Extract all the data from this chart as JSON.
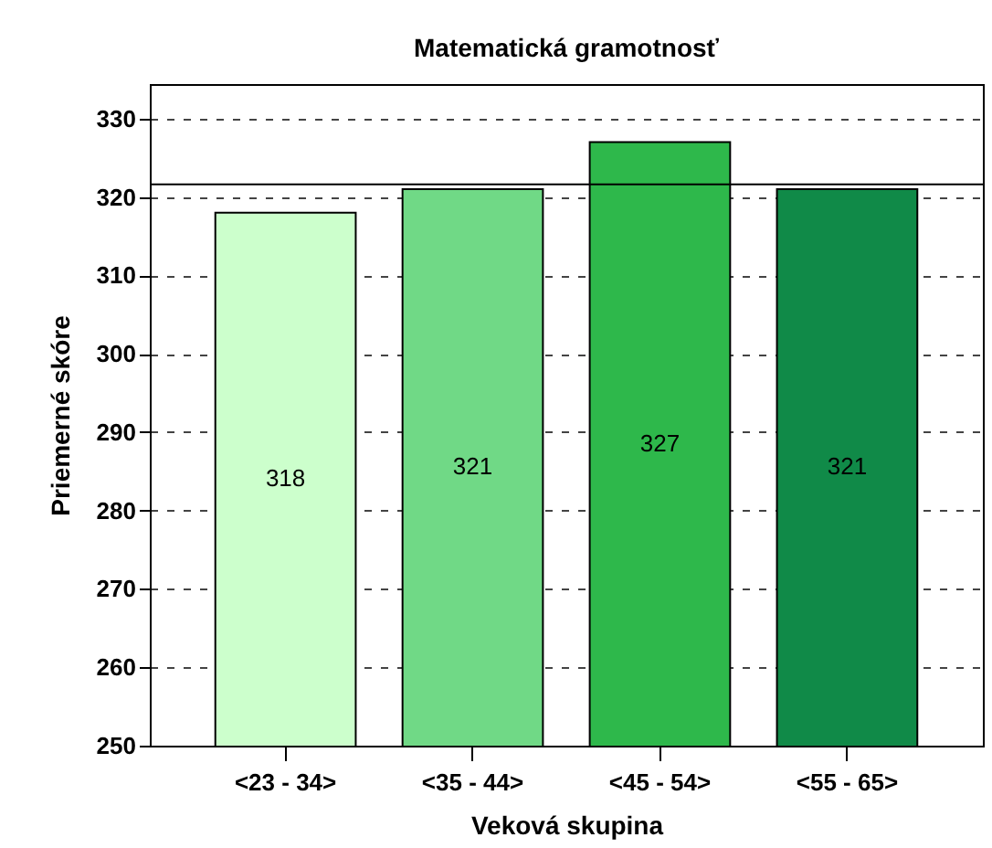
{
  "chart_data": {
    "type": "bar",
    "title": "Matematická gramotnosť",
    "xlabel": "Veková skupina",
    "ylabel": "Priemerné skóre",
    "categories": [
      "<23 - 34>",
      "<35 - 44>",
      "<45 - 54>",
      "<55 - 65>"
    ],
    "values": [
      318,
      321,
      327,
      321
    ],
    "colors": [
      "#ccffcc",
      "#70d986",
      "#2eb84b",
      "#108a48"
    ],
    "ylim": [
      250,
      334.4
    ],
    "yticks": [
      250,
      260,
      270,
      280,
      290,
      300,
      310,
      320,
      330
    ],
    "grid": "y",
    "data_labels": true,
    "ref_lines": [
      {
        "axis": "y",
        "value": 321.6,
        "color": "#000000",
        "line_style": "solid"
      }
    ]
  }
}
